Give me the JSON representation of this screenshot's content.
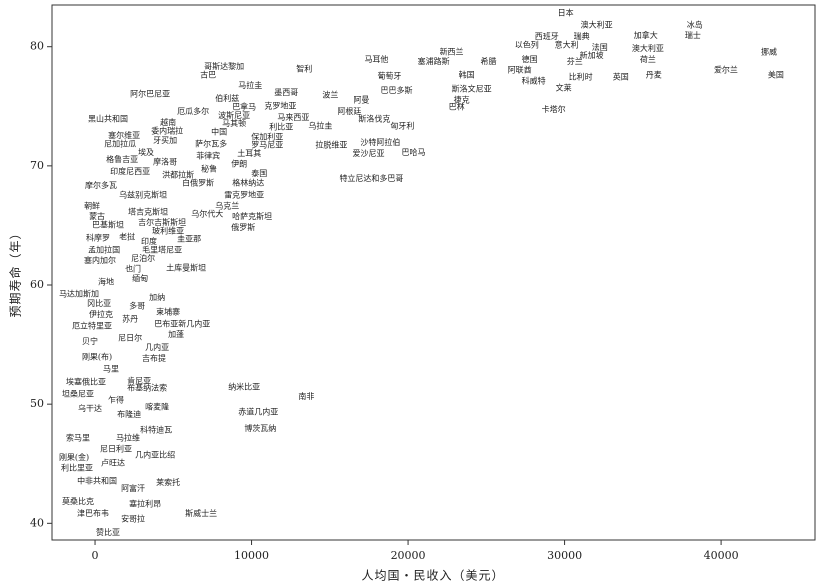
{
  "chart_data": {
    "type": "scatter",
    "x_label": "人均国・民收入（美元）",
    "y_label": "预期寿命（年）",
    "xlim": [
      -2750,
      46000
    ],
    "ylim": [
      38.6,
      83.5
    ],
    "xticks": [
      0,
      10000,
      20000,
      30000,
      40000
    ],
    "yticks": [
      40,
      50,
      60,
      70,
      80
    ],
    "color": "#222222",
    "labels": [
      "日本",
      "澳大利亚",
      "西班牙",
      "瑞典",
      "冰岛",
      "瑞士",
      "以色列",
      "意大利",
      "法国",
      "加拿大",
      "澳大利亚",
      "新加坡",
      "荷兰",
      "挪威",
      "德国",
      "芬兰",
      "爱尔兰",
      "美国",
      "比利时",
      "英国",
      "丹麦",
      "阿联酋",
      "科威特",
      "文莱",
      "卡塔尔",
      "新西兰",
      "塞浦路斯",
      "希腊",
      "韩国",
      "斯洛文尼亚",
      "捷克",
      "巴林",
      "马耳他",
      "葡萄牙",
      "巴巴多斯",
      "阿曼",
      "阿根廷",
      "斯洛伐克",
      "匈牙利",
      "沙特阿拉伯",
      "爱沙尼亚",
      "巴哈马",
      "拉脱维亚",
      "特立尼达和多巴哥",
      "波兰",
      "乌拉圭",
      "智利",
      "墨西哥",
      "克罗地亚",
      "马来西亚",
      "利比亚",
      "保加利亚",
      "罗马尼亚",
      "土耳其",
      "哥斯达黎加",
      "古巴",
      "马拉圭",
      "伯利兹",
      "巴拿马",
      "波斯尼亚",
      "马其顿",
      "中国",
      "萨尔瓦多",
      "菲律宾",
      "秘鲁",
      "伊朗",
      "泰国",
      "格林纳达",
      "雷克罗地亚",
      "乌克兰",
      "哈萨克斯坦",
      "俄罗斯",
      "乌尔代大",
      "阿尔巴尼亚",
      "厄瓜多尔",
      "黑山共和国",
      "越南",
      "委内瑞拉",
      "塞尔维亚",
      "尼加拉瓜",
      "牙买加",
      "埃及",
      "格鲁吉亚",
      "摩洛哥",
      "印度尼西亚",
      "洪都拉斯",
      "白俄罗斯",
      "摩尔多瓦",
      "乌兹别克斯坦",
      "塔吉克斯坦",
      "朝鲜",
      "蒙古",
      "巴基斯坦",
      "科摩罗",
      "老挝",
      "吉尔吉斯斯坦",
      "玻利维亚",
      "印度",
      "圭亚那",
      "毛里塔尼亚",
      "孟加拉国",
      "塞内加尔",
      "尼泊尔",
      "土库曼斯坦",
      "也门",
      "缅甸",
      "海地",
      "马达加斯加",
      "冈比亚",
      "加纳",
      "多哥",
      "伊拉克",
      "苏丹",
      "柬埔寨",
      "巴布亚新几内亚",
      "厄立特里亚",
      "加蓬",
      "尼日尔",
      "贝宁",
      "几内亚",
      "刚果(布)",
      "吉布提",
      "马里",
      "埃塞俄比亚",
      "坦桑尼亚",
      "肯尼亚",
      "布基纳法索",
      "乍得",
      "乌干达",
      "喀麦隆",
      "布隆迪",
      "纳米比亚",
      "南非",
      "赤道几内亚",
      "博茨瓦纳",
      "科特迪瓦",
      "索马里",
      "马拉维",
      "尼日利亚",
      "刚果(金)",
      "几内亚比绍",
      "卢旺达",
      "利比里亚",
      "中非共和国",
      "阿富汗",
      "莱索托",
      "莫桑比克",
      "塞拉利昂",
      "津巴布韦",
      "安哥拉",
      "斯威士兰",
      "赞比亚"
    ],
    "x": [
      30070,
      32050,
      28860,
      31090,
      38320,
      38200,
      27580,
      30130,
      32250,
      35190,
      35320,
      31730,
      35320,
      43060,
      27770,
      30650,
      40310,
      43500,
      31030,
      33590,
      35700,
      27130,
      28020,
      29940,
      29300,
      22780,
      21630,
      25140,
      23740,
      24060,
      23420,
      23100,
      17980,
      18810,
      19260,
      17020,
      16250,
      17850,
      19640,
      18230,
      17470,
      20350,
      15100,
      17660,
      15040,
      14400,
      13370,
      12220,
      11840,
      12670,
      11900,
      11000,
      11000,
      9850,
      8250,
      7230,
      9920,
      8450,
      9530,
      8890,
      8890,
      7930,
      7420,
      7230,
      7290,
      9210,
      10490,
      9790,
      9530,
      8450,
      10040,
      9470,
      7170,
      3520,
      6270,
      830,
      4670,
      4610,
      1860,
      1600,
      4480,
      3260,
      1730,
      4480,
      2240,
      5310,
      6590,
      380,
      3070,
      3390,
      -190,
      130,
      830,
      190,
      2050,
      4290,
      4670,
      3450,
      6010,
      4290,
      580,
      320,
      3070,
      5820,
      2430,
      2880,
      700,
      -1020,
      260,
      3970,
      2690,
      380,
      2240,
      4670,
      5570,
      -190,
      5180,
      2240,
      -320,
      3970,
      130,
      3770,
      1020,
      -580,
      -1090,
      2820,
      3330,
      1340,
      -320,
      3970,
      2180,
      9530,
      13500,
      10430,
      10560,
      3900,
      -1090,
      2110,
      1340,
      -1340,
      3840,
      1150,
      -1150,
      130,
      2430,
      4670,
      -1090,
      3200,
      -130,
      2430,
      6780,
      830
    ],
    "values": [
      82.8,
      81.8,
      80.8,
      80.8,
      81.8,
      80.9,
      80.1,
      80.1,
      79.9,
      80.9,
      79.8,
      79.2,
      78.9,
      79.5,
      78.9,
      78.7,
      78.0,
      77.6,
      77.4,
      77.4,
      77.6,
      78.0,
      77.1,
      76.5,
      74.7,
      79.5,
      78.7,
      78.7,
      77.6,
      76.4,
      75.5,
      74.9,
      78.9,
      77.5,
      76.3,
      75.5,
      74.5,
      73.9,
      73.3,
      71.9,
      71.0,
      71.1,
      71.7,
      68.9,
      75.9,
      73.3,
      78.1,
      76.1,
      75.0,
      74.0,
      73.2,
      72.4,
      71.7,
      71.0,
      78.3,
      77.6,
      76.7,
      75.6,
      74.9,
      74.2,
      73.5,
      72.8,
      71.8,
      70.8,
      69.7,
      70.1,
      69.3,
      68.5,
      67.5,
      66.6,
      65.7,
      64.8,
      65.9,
      76.0,
      74.5,
      73.9,
      73.6,
      72.9,
      72.5,
      71.8,
      72.1,
      71.1,
      70.5,
      70.3,
      69.5,
      69.2,
      68.5,
      68.3,
      67.5,
      66.1,
      66.6,
      65.7,
      65.0,
      63.9,
      64.0,
      65.2,
      64.5,
      63.6,
      63.8,
      62.9,
      62.9,
      62.0,
      62.2,
      61.4,
      61.3,
      60.5,
      60.2,
      59.2,
      58.4,
      58.9,
      58.2,
      57.5,
      57.1,
      57.7,
      56.7,
      56.5,
      55.8,
      55.5,
      55.2,
      54.7,
      53.9,
      53.8,
      52.9,
      51.8,
      50.8,
      51.9,
      51.3,
      50.3,
      49.6,
      49.7,
      49.1,
      51.4,
      50.6,
      49.3,
      47.9,
      47.8,
      47.1,
      47.1,
      46.2,
      45.5,
      45.7,
      45.0,
      44.6,
      43.5,
      42.9,
      43.4,
      41.8,
      41.6,
      40.8,
      40.3,
      40.8,
      39.2
    ]
  }
}
